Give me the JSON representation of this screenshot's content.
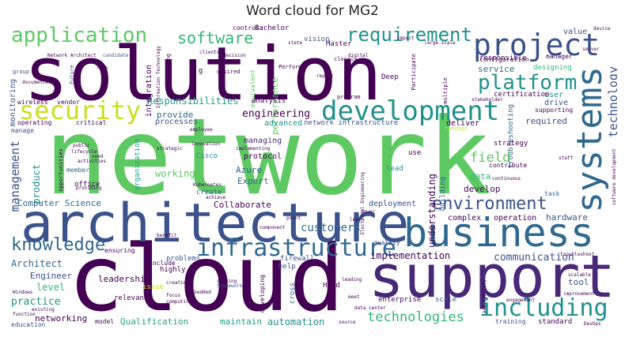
{
  "title": "Word cloud for MG2",
  "palette": {
    "green": "#5ec962",
    "lime": "#b5de2b",
    "yellow": "#c8e020",
    "teal": "#21918c",
    "blue": "#31688e",
    "indigo": "#3b528b",
    "purple": "#440154",
    "violet": "#482878",
    "cyan": "#1f9e89",
    "mint": "#35b779"
  },
  "words": {
    "network": "network",
    "solution": "solution",
    "cloud": "cloud",
    "architecture": "architecture",
    "support": "support",
    "business": "business",
    "systems": "systems",
    "project": "project",
    "development": "development",
    "security": "security",
    "platform": "platform",
    "application": "application",
    "software": "software",
    "requirement": "requirement",
    "infrastructure": "infrastructure",
    "environment": "environment",
    "including": "including",
    "knowledge": "knowledge",
    "technology": "technology",
    "technologies": "technologies",
    "management": "management",
    "engineering": "engineering",
    "customers": "customers",
    "Responsibilities": "Responsibilities",
    "working": "working",
    "field": "field",
    "product": "product",
    "Architect": "Architect",
    "Engineer": "Engineer",
    "practice": "practice",
    "level": "level",
    "networking": "networking",
    "communication": "communication",
    "implementation": "implementation",
    "understanding": "understanding",
    "leadership": "leadership",
    "Qualification": "Qualification",
    "maintain": "maintain",
    "automation": "automation",
    "hardware": "hardware",
    "tool": "tool",
    "service": "service",
    "performance": "performance",
    "Computer_Science": "Computer Science",
    "Collaborate": "Collaborate",
    "Azure": "Azure",
    "Expert": "Expert",
    "develop": "develop",
    "data": "data",
    "provide": "provide",
    "processes": "processes",
    "managing": "managing",
    "protocol": "protocol",
    "deployment": "deployment",
    "complex": "complex",
    "operation": "operation",
    "monitoring": "monitoring",
    "integration": "integration",
    "advanced": "advanced",
    "network_infrastructure": "network infrastructure",
    "deliver": "deliver",
    "required": "required",
    "user": "user",
    "drive": "drive",
    "value": "value",
    "responsible": "responsible",
    "designing": "designing",
    "configuration": "configuration",
    "manager": "manager",
    "certification": "certification",
    "Deep": "Deep",
    "vision": "vision",
    "Master": "Master",
    "Bachelor": "Bachelor",
    "control": "control",
    "e_g": "e g",
    "equivalent": "equivalent",
    "analysis": "analysis",
    "office": "office",
    "Cisco": "Cisco",
    "create": "create",
    "organization": "organization",
    "use": "use",
    "lead": "lead",
    "building": "building",
    "troubleshooting": "troubleshooting",
    "strategy": "strategy",
    "contribute": "contribute",
    "task": "task",
    "supporting": "supporting",
    "quality": "quality",
    "firewall": "firewall",
    "cross": "cross",
    "help": "help",
    "Hand": "Hand",
    "developing": "developing",
    "highly": "highly",
    "issue": "issue",
    "relevant": "relevant",
    "problems": "problems",
    "include": "include",
    "ensuring": "ensuring",
    "enterprise": "enterprise",
    "scale": "scale",
    "training": "training",
    "standard": "standard",
    "model": "model",
    "education": "education",
    "critical": "critical",
    "manage": "manage",
    "operating": "operating",
    "wireless": "wireless",
    "vendor": "vendor",
    "member": "member",
    "opportunities": "opportunities",
    "consulting": "consulting",
    "group": "group",
    "future": "future",
    "program": "program",
    "Participate": "Participate",
    "concept": "concept",
    "multiple": "multiple",
    "closely": "closely",
    "Perform": "Perform",
    "desired": "desired",
    "Tech": "Tech",
    "Network_Architect": "Network Architect",
    "candidate": "candidate",
    "documentation": "documentation",
    "strategic": "strategic",
    "public": "public",
    "innovation": "innovation",
    "Kubernetes": "Kubernetes",
    "Electrical_Engineering": "Electrical Engineering",
    "implementing": "implementing",
    "continuous": "continuous",
    "staff": "staff",
    "framework": "framework",
    "computing": "computing",
    "improvement": "improvement",
    "engagement": "engagement",
    "DevOps": "DevOps",
    "Windows": "Windows",
    "existing": "existing",
    "function": "function",
    "source": "source",
    "learn": "learn",
    "point": "point",
    "focus": "focus",
    "creating": "creating",
    "scalable": "scalable",
    "data_center": "data center",
    "device": "device",
    "server": "server",
    "large_scale": "large scale",
    "impact": "impact",
    "Information_Technology": "Information Technology",
    "software_development": "software development",
    "stakeholder": "stakeholder",
    "experience": "experience",
    "detail": "detail",
    "report": "report",
    "digital": "digital",
    "decision": "decision",
    "clients": "clients",
    "state": "state",
    "design": "design",
    "need": "need",
    "activities": "activities",
    "providing": "providing",
    "employee": "employee",
    "achieve": "achieve",
    "embedded": "embedded",
    "benefit": "benefit",
    "component": "component",
    "meet": "meet",
    "power": "power",
    "availability": "availability",
    "leading": "leading",
    "troubleshoot": "troubleshoot",
    "solving": "solving",
    "lifecycle": "lifecycle"
  }
}
